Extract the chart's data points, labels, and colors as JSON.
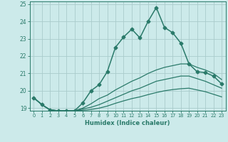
{
  "xlabel": "Humidex (Indice chaleur)",
  "background_color": "#cceaea",
  "grid_color": "#aacccc",
  "line_color": "#2a7a6a",
  "xlim": [
    -0.5,
    23.5
  ],
  "ylim": [
    18.85,
    25.15
  ],
  "yticks": [
    19,
    20,
    21,
    22,
    23,
    24,
    25
  ],
  "xticks": [
    0,
    1,
    2,
    3,
    4,
    5,
    6,
    7,
    8,
    9,
    10,
    11,
    12,
    13,
    14,
    15,
    16,
    17,
    18,
    19,
    20,
    21,
    22,
    23
  ],
  "series": [
    {
      "x": [
        0,
        1,
        2,
        3,
        4,
        5,
        6,
        7,
        8,
        9,
        10,
        11,
        12,
        13,
        14,
        15,
        16,
        17,
        18,
        19,
        20,
        21,
        22,
        23
      ],
      "y": [
        19.6,
        19.2,
        18.9,
        18.85,
        18.85,
        18.85,
        19.3,
        20.0,
        20.35,
        21.1,
        22.5,
        23.1,
        23.55,
        23.05,
        24.0,
        24.8,
        23.65,
        23.35,
        22.75,
        21.55,
        21.1,
        21.05,
        20.85,
        20.4
      ],
      "marker": "D",
      "linewidth": 1.1,
      "markersize": 2.5
    },
    {
      "x": [
        0,
        1,
        2,
        3,
        4,
        5,
        6,
        7,
        8,
        9,
        10,
        11,
        12,
        13,
        14,
        15,
        16,
        17,
        18,
        19,
        20,
        21,
        22,
        23
      ],
      "y": [
        19.6,
        19.2,
        18.9,
        18.85,
        18.85,
        18.85,
        19.0,
        19.25,
        19.55,
        19.75,
        20.05,
        20.3,
        20.55,
        20.75,
        21.0,
        21.2,
        21.35,
        21.45,
        21.55,
        21.55,
        21.35,
        21.2,
        21.0,
        20.65
      ],
      "marker": null,
      "linewidth": 0.9,
      "markersize": 0
    },
    {
      "x": [
        0,
        1,
        2,
        3,
        4,
        5,
        6,
        7,
        8,
        9,
        10,
        11,
        12,
        13,
        14,
        15,
        16,
        17,
        18,
        19,
        20,
        21,
        22,
        23
      ],
      "y": [
        19.6,
        19.2,
        18.9,
        18.85,
        18.85,
        18.85,
        18.95,
        19.05,
        19.2,
        19.4,
        19.6,
        19.8,
        20.0,
        20.15,
        20.35,
        20.55,
        20.65,
        20.75,
        20.85,
        20.85,
        20.7,
        20.55,
        20.35,
        20.15
      ],
      "marker": null,
      "linewidth": 0.9,
      "markersize": 0
    },
    {
      "x": [
        0,
        1,
        2,
        3,
        4,
        5,
        6,
        7,
        8,
        9,
        10,
        11,
        12,
        13,
        14,
        15,
        16,
        17,
        18,
        19,
        20,
        21,
        22,
        23
      ],
      "y": [
        19.6,
        19.2,
        18.9,
        18.85,
        18.85,
        18.85,
        18.88,
        18.92,
        19.0,
        19.12,
        19.28,
        19.42,
        19.55,
        19.65,
        19.78,
        19.9,
        20.0,
        20.07,
        20.12,
        20.15,
        20.05,
        19.95,
        19.8,
        19.65
      ],
      "marker": null,
      "linewidth": 0.9,
      "markersize": 0
    }
  ]
}
